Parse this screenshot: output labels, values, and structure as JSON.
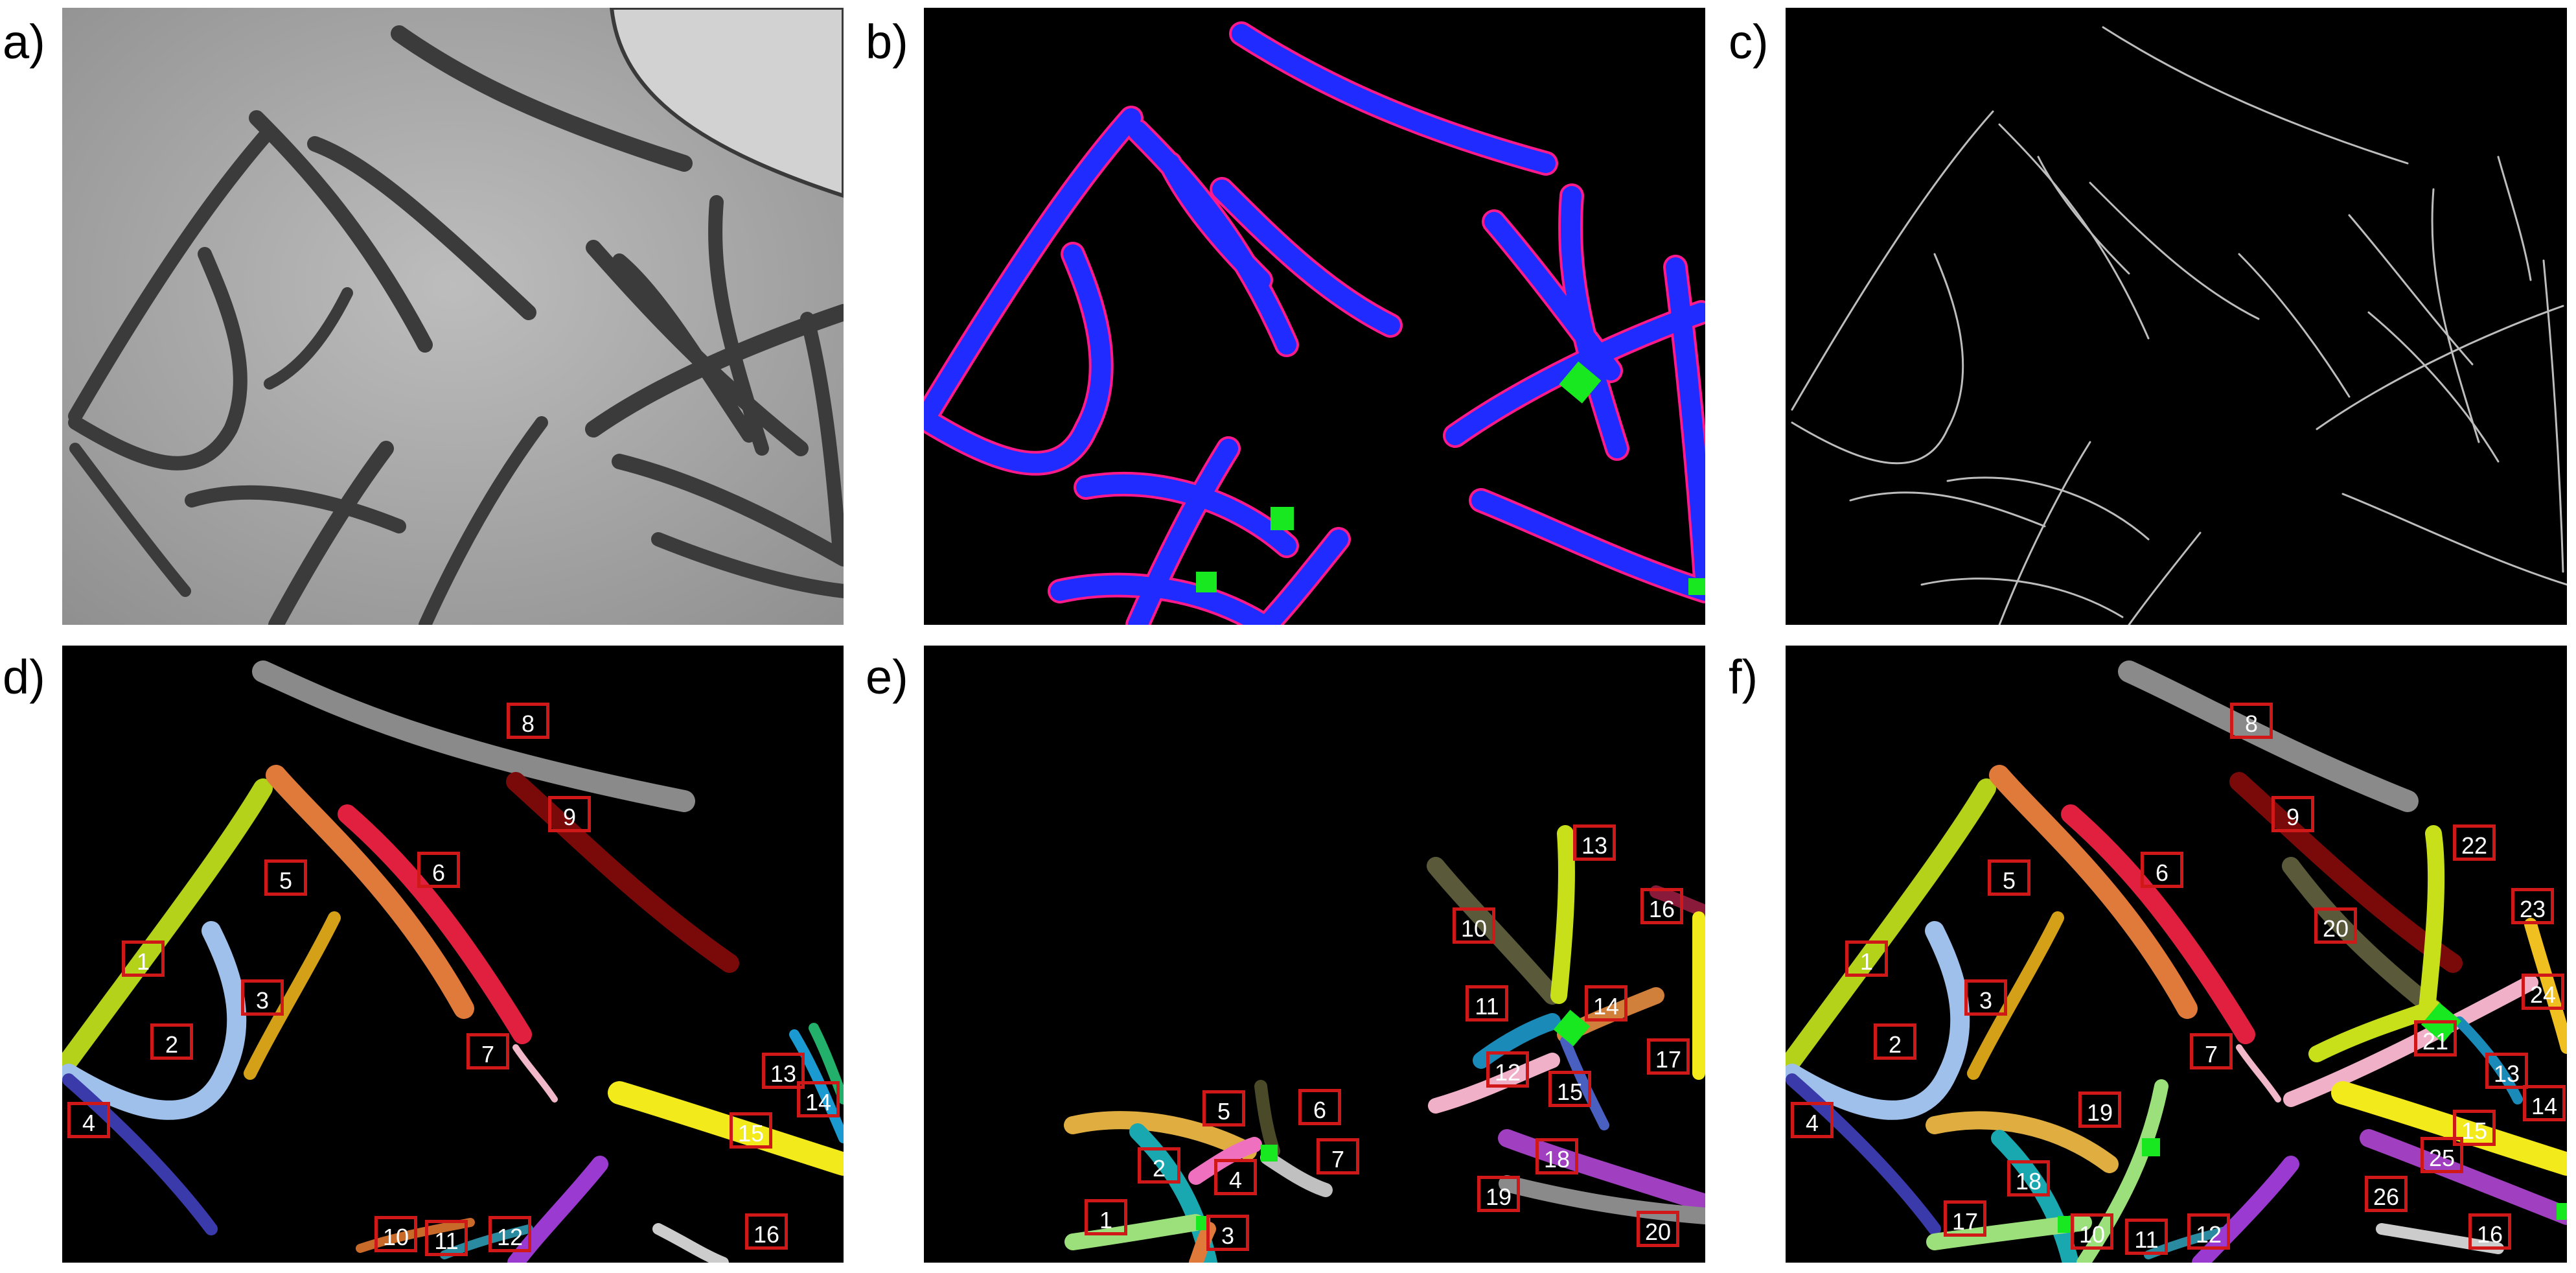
{
  "panel_letters": {
    "a": "a)",
    "b": "b)",
    "c": "c)",
    "d": "d)",
    "e": "e)",
    "f": "f)"
  },
  "colors": {
    "background": "#000000",
    "mask_body": "#1f2bff",
    "mask_contour": "#ff1a8c",
    "overlap": "#17e81f",
    "skeleton": "#bdbdbd",
    "label_border": "#d01818"
  },
  "panel_d_labels": [
    "1",
    "2",
    "3",
    "4",
    "5",
    "6",
    "7",
    "8",
    "9",
    "10",
    "11",
    "12",
    "13",
    "14",
    "15",
    "16"
  ],
  "panel_e_labels": [
    "1",
    "2",
    "3",
    "4",
    "5",
    "6",
    "7",
    "10",
    "11",
    "12",
    "13",
    "14",
    "15",
    "16",
    "17",
    "18",
    "19",
    "20"
  ],
  "panel_f_labels": [
    "1",
    "2",
    "3",
    "4",
    "5",
    "6",
    "7",
    "8",
    "9",
    "10",
    "11",
    "12",
    "13",
    "14",
    "15",
    "16",
    "17",
    "18",
    "19",
    "20",
    "21",
    "22",
    "23",
    "24",
    "25",
    "26"
  ]
}
